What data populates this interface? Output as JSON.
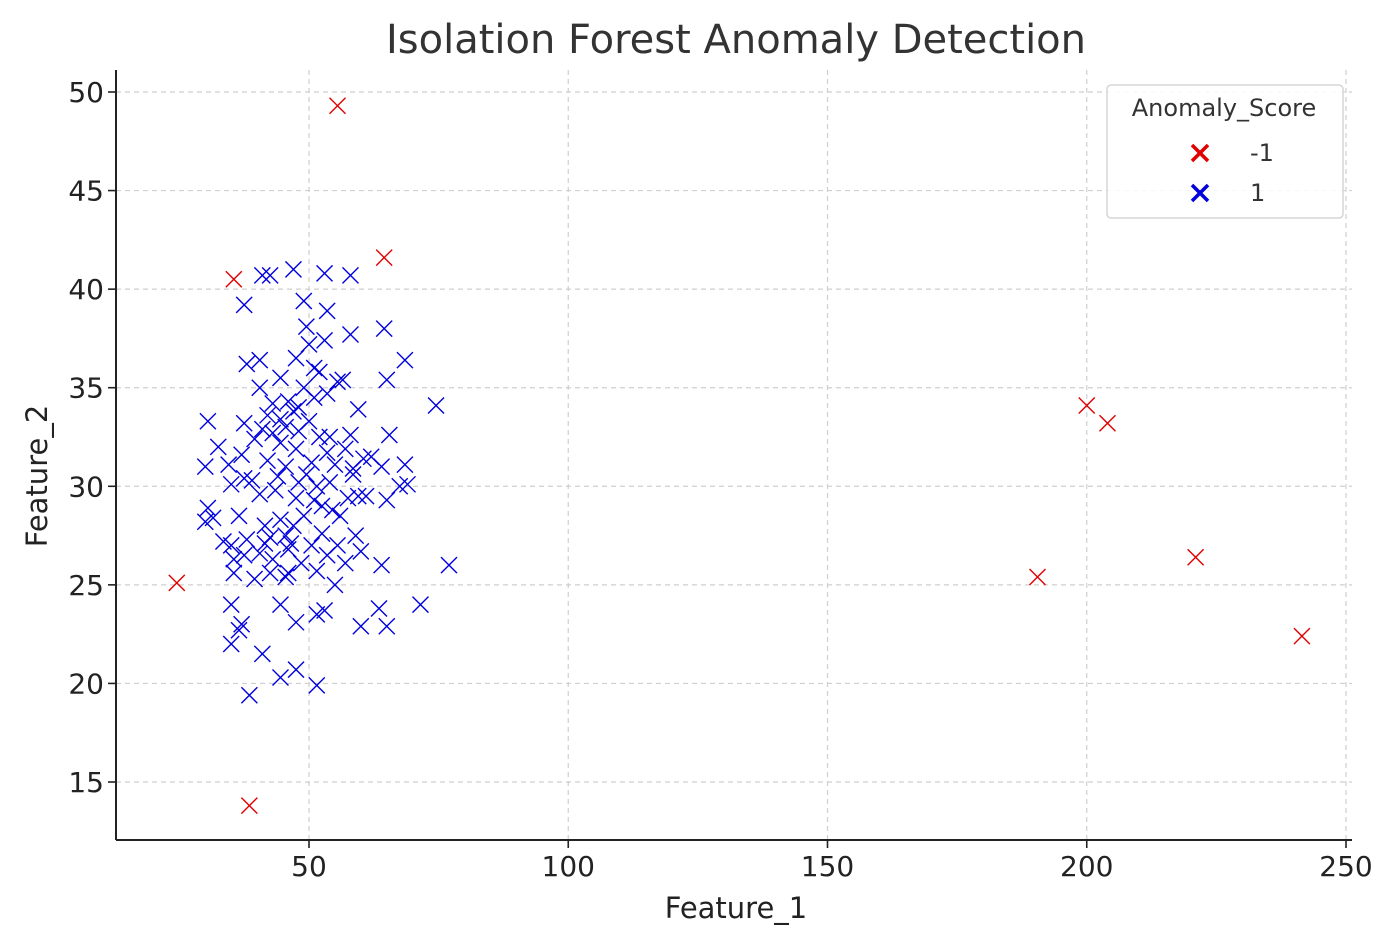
{
  "chart_data": {
    "type": "scatter",
    "title": "Isolation Forest Anomaly Detection",
    "xlabel": "Feature_1",
    "ylabel": "Feature_2",
    "xlim": [
      13,
      252
    ],
    "ylim": [
      12,
      51
    ],
    "xticks": [
      50,
      100,
      150,
      200,
      250
    ],
    "yticks": [
      15,
      20,
      25,
      30,
      35,
      40,
      45,
      50
    ],
    "grid": true,
    "marker": "x",
    "legend": {
      "title": "Anomaly_Score",
      "placement": "top-right",
      "entries": [
        {
          "label": "-1",
          "color": "#e00000"
        },
        {
          "label": "1",
          "color": "#0000dd"
        }
      ]
    },
    "series": [
      {
        "name": "-1",
        "color": "#e00000",
        "points": [
          [
            55.5,
            49.3
          ],
          [
            64.5,
            41.6
          ],
          [
            35.5,
            40.5
          ],
          [
            24.5,
            25.1
          ],
          [
            38.5,
            13.8
          ],
          [
            200.0,
            34.1
          ],
          [
            204.0,
            33.2
          ],
          [
            190.5,
            25.4
          ],
          [
            221.0,
            26.4
          ],
          [
            241.5,
            22.4
          ]
        ]
      },
      {
        "name": "1",
        "color": "#0000dd",
        "points": [
          [
            41.0,
            40.7
          ],
          [
            42.5,
            40.7
          ],
          [
            47.0,
            41.0
          ],
          [
            53.0,
            40.8
          ],
          [
            58.0,
            40.7
          ],
          [
            37.5,
            39.2
          ],
          [
            49.0,
            39.4
          ],
          [
            53.5,
            38.9
          ],
          [
            49.5,
            38.1
          ],
          [
            58.0,
            37.7
          ],
          [
            64.5,
            38.0
          ],
          [
            50.0,
            37.2
          ],
          [
            53.0,
            37.4
          ],
          [
            47.5,
            36.5
          ],
          [
            38.0,
            36.2
          ],
          [
            40.5,
            36.4
          ],
          [
            51.0,
            36.0
          ],
          [
            56.5,
            35.4
          ],
          [
            68.5,
            36.4
          ],
          [
            44.5,
            35.5
          ],
          [
            49.0,
            35.0
          ],
          [
            52.0,
            35.8
          ],
          [
            55.5,
            35.3
          ],
          [
            65.0,
            35.4
          ],
          [
            40.5,
            35.0
          ],
          [
            43.0,
            34.2
          ],
          [
            46.0,
            34.3
          ],
          [
            48.0,
            34.0
          ],
          [
            51.0,
            34.5
          ],
          [
            53.5,
            34.7
          ],
          [
            74.5,
            34.1
          ],
          [
            42.0,
            33.6
          ],
          [
            44.5,
            33.4
          ],
          [
            47.0,
            33.8
          ],
          [
            50.0,
            33.3
          ],
          [
            59.5,
            33.9
          ],
          [
            30.5,
            33.3
          ],
          [
            37.5,
            33.2
          ],
          [
            41.0,
            32.9
          ],
          [
            43.0,
            32.7
          ],
          [
            45.5,
            33.0
          ],
          [
            48.0,
            32.8
          ],
          [
            52.0,
            32.5
          ],
          [
            58.0,
            32.6
          ],
          [
            65.5,
            32.6
          ],
          [
            32.5,
            32.0
          ],
          [
            39.5,
            32.4
          ],
          [
            44.5,
            32.2
          ],
          [
            47.5,
            31.9
          ],
          [
            53.5,
            31.7
          ],
          [
            57.0,
            31.9
          ],
          [
            62.0,
            31.5
          ],
          [
            34.5,
            31.1
          ],
          [
            37.0,
            31.6
          ],
          [
            42.0,
            31.3
          ],
          [
            45.5,
            31.0
          ],
          [
            50.5,
            31.2
          ],
          [
            55.0,
            31.1
          ],
          [
            58.5,
            30.9
          ],
          [
            64.0,
            31.0
          ],
          [
            68.5,
            31.1
          ],
          [
            30.0,
            31.0
          ],
          [
            35.0,
            30.1
          ],
          [
            39.0,
            30.3
          ],
          [
            44.0,
            30.5
          ],
          [
            48.0,
            30.2
          ],
          [
            51.5,
            30.0
          ],
          [
            54.0,
            30.2
          ],
          [
            61.0,
            29.5
          ],
          [
            67.5,
            30.0
          ],
          [
            69.0,
            30.1
          ],
          [
            30.5,
            28.9
          ],
          [
            31.5,
            28.4
          ],
          [
            36.5,
            28.5
          ],
          [
            41.5,
            28.0
          ],
          [
            44.5,
            28.3
          ],
          [
            47.5,
            29.4
          ],
          [
            51.0,
            29.3
          ],
          [
            54.5,
            28.8
          ],
          [
            57.5,
            29.4
          ],
          [
            59.5,
            29.5
          ],
          [
            65.0,
            29.3
          ],
          [
            30.0,
            28.2
          ],
          [
            35.0,
            27.0
          ],
          [
            38.0,
            27.3
          ],
          [
            41.5,
            27.1
          ],
          [
            45.5,
            27.5
          ],
          [
            49.0,
            28.5
          ],
          [
            52.5,
            27.6
          ],
          [
            55.5,
            27.0
          ],
          [
            59.0,
            27.5
          ],
          [
            35.5,
            26.3
          ],
          [
            37.5,
            26.5
          ],
          [
            40.5,
            26.6
          ],
          [
            43.0,
            26.3
          ],
          [
            46.0,
            26.8
          ],
          [
            48.5,
            26.1
          ],
          [
            53.5,
            26.5
          ],
          [
            57.0,
            26.1
          ],
          [
            60.0,
            26.7
          ],
          [
            64.0,
            26.0
          ],
          [
            77.0,
            26.0
          ],
          [
            35.5,
            25.6
          ],
          [
            39.5,
            25.3
          ],
          [
            42.5,
            25.6
          ],
          [
            45.5,
            25.4
          ],
          [
            51.5,
            25.7
          ],
          [
            55.0,
            25.0
          ],
          [
            35.0,
            24.0
          ],
          [
            44.5,
            24.0
          ],
          [
            51.5,
            23.5
          ],
          [
            53.0,
            23.7
          ],
          [
            63.5,
            23.8
          ],
          [
            71.5,
            24.0
          ],
          [
            37.0,
            23.0
          ],
          [
            36.5,
            22.7
          ],
          [
            47.5,
            23.1
          ],
          [
            60.0,
            22.9
          ],
          [
            65.0,
            22.9
          ],
          [
            35.0,
            22.0
          ],
          [
            41.0,
            21.5
          ],
          [
            47.5,
            20.7
          ],
          [
            44.5,
            20.3
          ],
          [
            51.5,
            19.9
          ],
          [
            38.5,
            19.4
          ],
          [
            33.5,
            27.2
          ],
          [
            43.5,
            29.8
          ],
          [
            47.0,
            28.0
          ],
          [
            50.5,
            27.0
          ],
          [
            54.0,
            32.5
          ],
          [
            56.0,
            28.5
          ],
          [
            60.5,
            31.4
          ],
          [
            40.5,
            29.6
          ],
          [
            46.5,
            27.1
          ],
          [
            49.5,
            30.6
          ],
          [
            52.5,
            29.0
          ],
          [
            58.5,
            30.6
          ],
          [
            37.5,
            30.4
          ],
          [
            42.5,
            27.4
          ],
          [
            46.0,
            25.6
          ]
        ]
      }
    ]
  }
}
